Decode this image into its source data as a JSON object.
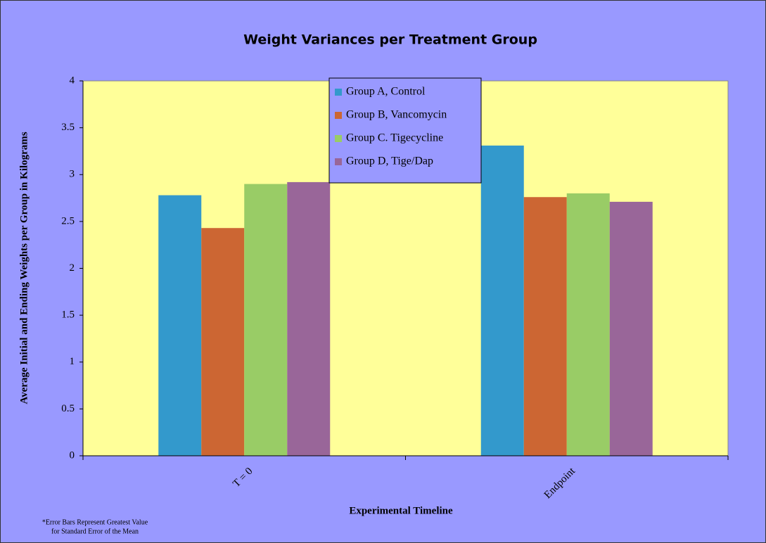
{
  "chart_data": {
    "type": "bar",
    "title": "Weight Variances per Treatment Group",
    "x_label": "Experimental Timeline",
    "y_label": "Average Initial and Ending Weights per Group in Kilograms",
    "footnote": [
      "*Error Bars Represent Greatest Value",
      "for Standard Error of the Mean"
    ],
    "categories": [
      "T = 0",
      "Endpoint"
    ],
    "series": [
      {
        "name": "Group A, Control",
        "color": "#3399cc",
        "values": [
          2.78,
          3.31
        ]
      },
      {
        "name": "Group B, Vancomycin",
        "color": "#cc6633",
        "values": [
          2.43,
          2.76
        ]
      },
      {
        "name": "Group C. Tigecycline",
        "color": "#99cc66",
        "values": [
          2.9,
          2.8
        ]
      },
      {
        "name": "Group D, Tige/Dap",
        "color": "#996699",
        "values": [
          2.92,
          2.71
        ]
      }
    ],
    "ylim": [
      0,
      4
    ],
    "yticks": [
      0,
      0.5,
      1,
      1.5,
      2,
      2.5,
      3,
      3.5,
      4
    ],
    "grid": false,
    "legend": "top"
  }
}
